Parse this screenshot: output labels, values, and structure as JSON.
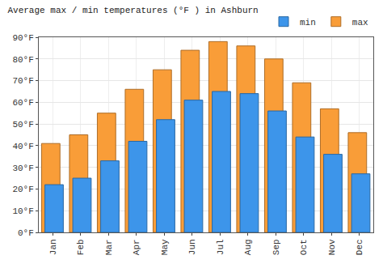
{
  "chart_data": {
    "type": "bar",
    "title": "Average max / min temperatures (°F ) in Ashburn",
    "categories": [
      "Jan",
      "Feb",
      "Mar",
      "Apr",
      "May",
      "Jun",
      "Jul",
      "Aug",
      "Sep",
      "Oct",
      "Nov",
      "Dec"
    ],
    "series": [
      {
        "name": "max",
        "color": "#f99d38",
        "values": [
          41,
          45,
          55,
          66,
          75,
          84,
          88,
          86,
          80,
          69,
          57,
          46
        ]
      },
      {
        "name": "min",
        "color": "#3d95ea",
        "values": [
          22,
          25,
          33,
          42,
          52,
          61,
          65,
          64,
          56,
          44,
          36,
          27
        ]
      }
    ],
    "ylim": [
      0,
      90
    ],
    "yticks": [
      {
        "value": 0,
        "label": "0°F"
      },
      {
        "value": 10,
        "label": "10°F"
      },
      {
        "value": 20,
        "label": "20°F"
      },
      {
        "value": 30,
        "label": "30°F"
      },
      {
        "value": 40,
        "label": "40°F"
      },
      {
        "value": 50,
        "label": "50°F"
      },
      {
        "value": 60,
        "label": "60°F"
      },
      {
        "value": 70,
        "label": "70°F"
      },
      {
        "value": 80,
        "label": "80°F"
      },
      {
        "value": 90,
        "label": "90°F"
      }
    ],
    "grid": true,
    "legend": "top right"
  }
}
